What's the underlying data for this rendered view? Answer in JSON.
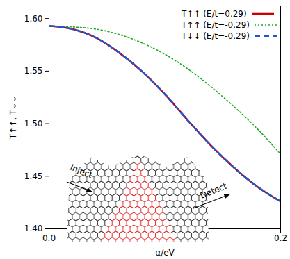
{
  "chart_data": {
    "type": "line",
    "x_label": "α/eV",
    "y_label": "T↑↑, T↓↓",
    "x": [
      0,
      0.02,
      0.04,
      0.06,
      0.08,
      0.1,
      0.12,
      0.14,
      0.16,
      0.18,
      0.2
    ],
    "series": [
      {
        "name": "T↑↑ (E/t=0.29)",
        "color": "#cc0000",
        "line_style": "solid",
        "values": [
          1.593,
          1.59,
          1.582,
          1.568,
          1.55,
          1.528,
          1.503,
          1.479,
          1.458,
          1.44,
          1.426
        ]
      },
      {
        "name": "T↑↑ (E/t=-0.29)",
        "color": "#22aa22",
        "line_style": "dotted",
        "values": [
          1.593,
          1.592,
          1.59,
          1.585,
          1.577,
          1.566,
          1.552,
          1.535,
          1.516,
          1.495,
          1.471
        ]
      },
      {
        "name": "T↓↓ (E/t=-0.29)",
        "color": "#2255cc",
        "line_style": "dashed",
        "values": [
          1.593,
          1.59,
          1.582,
          1.568,
          1.55,
          1.528,
          1.503,
          1.479,
          1.458,
          1.44,
          1.426
        ]
      }
    ],
    "xlim": [
      0,
      0.2
    ],
    "xticks": [
      {
        "value": 0,
        "label": "0.0"
      },
      0.1,
      0.2
    ],
    "ylim": [
      1.4,
      1.612
    ],
    "yticks": [
      {
        "value": 1.4,
        "label": "1.40"
      },
      {
        "value": 1.45,
        "label": "1.45"
      },
      {
        "value": 1.5,
        "label": "1.50"
      },
      {
        "value": 1.55,
        "label": "1.55"
      },
      {
        "value": 1.6,
        "label": "1.60"
      }
    ],
    "legend": "top-right",
    "annotations": [
      "Inject",
      "Detect"
    ]
  }
}
